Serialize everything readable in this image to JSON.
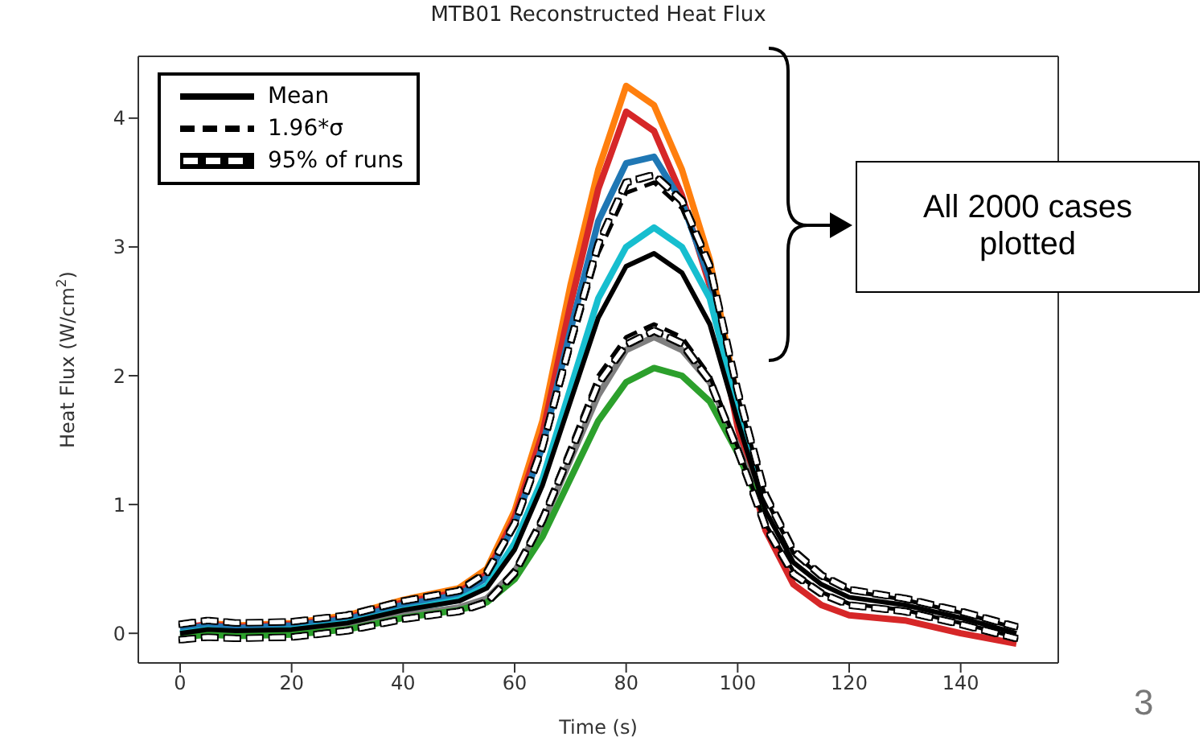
{
  "chart_data": {
    "type": "line",
    "title": "MTB01 Reconstructed Heat Flux",
    "xlabel": "Time (s)",
    "ylabel": "Heat Flux (W/cm$^{2}$)",
    "x": [
      0,
      5,
      10,
      20,
      30,
      40,
      50,
      55,
      60,
      65,
      70,
      75,
      80,
      85,
      90,
      95,
      100,
      105,
      110,
      115,
      120,
      130,
      140,
      150
    ],
    "xlim": [
      -7.5,
      157.5
    ],
    "xticks": [
      0,
      20,
      40,
      60,
      80,
      100,
      120,
      140
    ],
    "ylim": [
      -0.23,
      4.48
    ],
    "yticks": [
      0,
      1,
      2,
      3,
      4
    ],
    "grid": false,
    "legend": "top left",
    "marker": "none",
    "series": [
      {
        "color": "#ff7f0e",
        "values": [
          null,
          0.08,
          0.06,
          0.08,
          0.14,
          0.26,
          0.35,
          0.5,
          0.95,
          1.65,
          2.7,
          3.6,
          4.25,
          4.1,
          3.6,
          2.9,
          1.8,
          1.0,
          null,
          null,
          null,
          null,
          null,
          null
        ]
      },
      {
        "color": "#d62728",
        "values": [
          0.04,
          0.07,
          0.05,
          0.07,
          0.12,
          0.24,
          0.32,
          0.46,
          0.9,
          1.55,
          2.55,
          3.45,
          4.05,
          3.9,
          3.4,
          2.7,
          1.6,
          0.8,
          0.38,
          0.22,
          0.14,
          0.1,
          0.0,
          -0.08
        ]
      },
      {
        "color": "#1f77b4",
        "values": [
          0.03,
          0.06,
          0.04,
          0.06,
          0.11,
          0.22,
          0.3,
          0.43,
          0.85,
          1.45,
          2.35,
          3.2,
          3.65,
          3.7,
          3.35,
          2.75,
          1.75,
          1.0,
          null,
          null,
          null,
          null,
          null,
          null
        ]
      },
      {
        "color": "#17becf",
        "values": [
          0.0,
          0.03,
          0.01,
          0.03,
          0.08,
          0.18,
          0.26,
          0.37,
          0.7,
          1.2,
          1.9,
          2.6,
          3.0,
          3.15,
          3.0,
          2.6,
          1.75,
          1.0,
          null,
          null,
          null,
          null,
          null,
          null
        ]
      },
      {
        "color": "#7f7f7f",
        "values": [
          -0.02,
          0.0,
          -0.01,
          0.0,
          0.05,
          0.14,
          0.2,
          0.27,
          0.48,
          0.85,
          1.35,
          1.85,
          2.2,
          2.3,
          2.2,
          1.95,
          1.45,
          0.9,
          null,
          null,
          null,
          null,
          null,
          null
        ]
      },
      {
        "color": "#2ca02c",
        "values": [
          -0.03,
          -0.01,
          -0.02,
          -0.01,
          0.03,
          0.12,
          0.18,
          0.24,
          0.42,
          0.75,
          1.2,
          1.65,
          1.95,
          2.06,
          2.0,
          1.8,
          1.4,
          0.9,
          null,
          null,
          null,
          null,
          null,
          null
        ]
      },
      {
        "name": "Mean",
        "color": "#000000",
        "line_style": "solid",
        "values": [
          0,
          0.03,
          0.02,
          0.03,
          0.08,
          0.18,
          0.25,
          0.35,
          0.65,
          1.15,
          1.8,
          2.45,
          2.85,
          2.95,
          2.8,
          2.4,
          1.65,
          0.95,
          0.55,
          0.38,
          0.28,
          0.22,
          0.12,
          0
        ]
      },
      {
        "name": "1.96*σ",
        "color": "#000000",
        "line_style": "dashed",
        "values": [
          0.06,
          0.09,
          0.07,
          0.08,
          0.13,
          0.24,
          0.32,
          0.45,
          0.82,
          1.4,
          2.2,
          2.95,
          3.42,
          3.5,
          3.3,
          2.8,
          1.85,
          1.05,
          0.62,
          0.44,
          0.33,
          0.26,
          0.16,
          0.04
        ]
      },
      {
        "color": "#000000",
        "line_style": "dashed",
        "values": [
          -0.04,
          -0.02,
          -0.03,
          -0.02,
          0.03,
          0.12,
          0.18,
          0.26,
          0.5,
          0.92,
          1.45,
          2.0,
          2.3,
          2.4,
          2.3,
          2.0,
          1.45,
          0.85,
          0.48,
          0.32,
          0.23,
          0.18,
          0.08,
          -0.03
        ]
      },
      {
        "name": "95% of runs",
        "color": "#ffffff",
        "line_style": "dashed",
        "values": [
          0.07,
          0.1,
          0.08,
          0.09,
          0.14,
          0.25,
          0.33,
          0.47,
          0.85,
          1.45,
          2.26,
          3.02,
          3.5,
          3.56,
          3.36,
          2.85,
          1.88,
          1.07,
          0.64,
          0.45,
          0.34,
          0.27,
          0.17,
          0.05
        ]
      },
      {
        "color": "#ffffff",
        "line_style": "dashed",
        "values": [
          -0.05,
          -0.03,
          -0.04,
          -0.03,
          0.02,
          0.11,
          0.17,
          0.24,
          0.47,
          0.88,
          1.4,
          1.94,
          2.24,
          2.35,
          2.25,
          1.96,
          1.42,
          0.83,
          0.46,
          0.31,
          0.22,
          0.17,
          0.07,
          -0.04
        ]
      }
    ],
    "annotations": [
      "All 2000 cases plotted",
      "3"
    ]
  }
}
